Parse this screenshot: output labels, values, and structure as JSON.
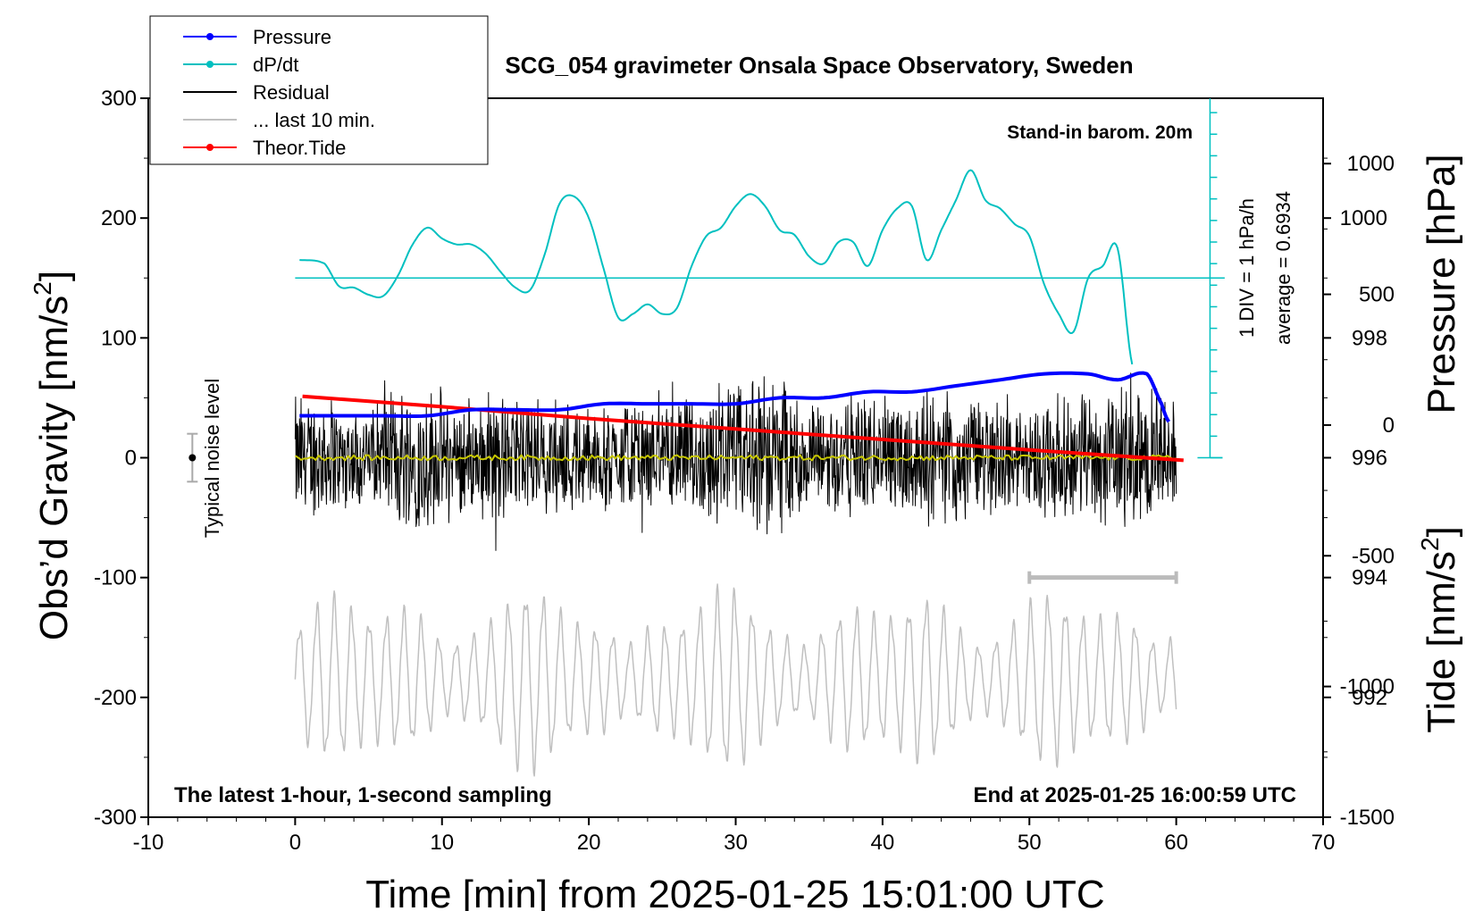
{
  "chart_data": {
    "type": "line",
    "title": "SCG_054 gravimeter Onsala Space Observatory, Sweden",
    "note_top_right": "Stand-in barom. 20m",
    "note_bottom_left": "The latest 1-hour, 1-second sampling",
    "note_bottom_right": "End at 2025-01-25 16:00:59 UTC",
    "xlabel": "Time [min] from 2025-01-25 15:01:00 UTC",
    "ylabel_left": "Obs'd Gravity [nm/s²]",
    "ylabel_left_main": "Obs’d Gravity [nm/s",
    "ylabel_left_sup": "2",
    "ylabel_left_end": "]",
    "ylabel_pressure": "Pressure [hPa]",
    "ylabel_tide": "Tide [nm/s²]",
    "ylabel_tide_main": "Tide [nm/s",
    "ylabel_tide_sup": "2",
    "ylabel_tide_end": "]",
    "xlim": [
      -10,
      70
    ],
    "ylim_left": [
      -300,
      300
    ],
    "x_ticks": [
      "-10",
      "0",
      "10",
      "20",
      "30",
      "40",
      "50",
      "60",
      "70"
    ],
    "x_tick_values": [
      -10,
      0,
      10,
      20,
      30,
      40,
      50,
      60,
      70
    ],
    "y_ticks_left": [
      "-300",
      "-200",
      "-100",
      "0",
      "100",
      "200",
      "300"
    ],
    "y_tick_values_left": [
      -300,
      -200,
      -100,
      0,
      100,
      200,
      300
    ],
    "pressure_axis": {
      "ticks": [
        "992",
        "994",
        "996",
        "998",
        "1000"
      ],
      "tick_values": [
        992,
        994,
        996,
        998,
        1000
      ],
      "range": [
        990.0,
        1002.0
      ]
    },
    "tide_axis": {
      "ticks": [
        "-1500",
        "-1000",
        "-500",
        "0",
        "500",
        "1000"
      ],
      "tick_values": [
        -1500,
        -1000,
        -500,
        0,
        500,
        1000
      ],
      "range": [
        -1500,
        1250
      ]
    },
    "dpdt_scale": {
      "label_div": "1 DIV = 1 hPa/h",
      "label_avg": "average = 0.6934",
      "baseline_gravity": 150,
      "div_gravity_units": 18
    },
    "noise_level": {
      "label": "Typical noise level",
      "x": -7,
      "center": 0,
      "half_range": 20
    },
    "last10_bar": {
      "x_start": 50,
      "x_end": 60,
      "gravity": -100
    },
    "legend": [
      {
        "label": "Pressure",
        "color": "#0000ff",
        "marker": true
      },
      {
        "label": "dP/dt",
        "color": "#00c0c0",
        "marker": true
      },
      {
        "label": "Residual",
        "color": "#000000",
        "marker": false
      },
      {
        "label": "... last 10 min.",
        "color": "#c0c0c0",
        "marker": false
      },
      {
        "label": "Theor.Tide",
        "color": "#ff0000",
        "marker": true
      }
    ],
    "series": [
      {
        "name": "Pressure",
        "axis": "pressure",
        "color": "#0000ff",
        "x": [
          0.3,
          3,
          6,
          9,
          12,
          15,
          18,
          21,
          24,
          27,
          30,
          33,
          36,
          39,
          42,
          45,
          48,
          51,
          54,
          56,
          58,
          59,
          59.5
        ],
        "values": [
          996.7,
          996.7,
          996.7,
          996.7,
          996.8,
          996.8,
          996.8,
          996.9,
          996.9,
          996.9,
          996.9,
          997.0,
          997.0,
          997.1,
          997.1,
          997.2,
          997.3,
          997.4,
          997.4,
          997.3,
          997.4,
          996.9,
          996.6
        ]
      },
      {
        "name": "dP/dt",
        "axis": "gravity",
        "color": "#00c0c0",
        "x": [
          0.3,
          2,
          3,
          4,
          5,
          6,
          7,
          8,
          9,
          10,
          11,
          12,
          13,
          14,
          15,
          16,
          17,
          18,
          19,
          20,
          21,
          22,
          23,
          24,
          25,
          26,
          27,
          28,
          29,
          30,
          31,
          32,
          33,
          34,
          35,
          36,
          37,
          38,
          39,
          40,
          41,
          42,
          43,
          44,
          45,
          46,
          47,
          48,
          49,
          50,
          51,
          52,
          53,
          54,
          55,
          56,
          57
        ],
        "values": [
          165,
          162,
          143,
          142,
          136,
          135,
          152,
          178,
          192,
          183,
          178,
          178,
          170,
          155,
          142,
          140,
          170,
          212,
          218,
          200,
          158,
          117,
          120,
          128,
          120,
          125,
          160,
          185,
          192,
          210,
          220,
          210,
          190,
          186,
          168,
          162,
          180,
          180,
          160,
          190,
          208,
          210,
          165,
          190,
          215,
          240,
          215,
          208,
          195,
          185,
          145,
          120,
          105,
          150,
          160,
          175,
          78
        ]
      },
      {
        "name": "Residual",
        "axis": "gravity",
        "color": "#000000",
        "x_range": [
          0,
          60
        ],
        "amplitude_range": [
          -95,
          104
        ],
        "envelope_x": [
          0,
          5,
          8,
          10,
          13,
          16,
          20,
          25,
          29,
          32,
          35,
          40,
          45,
          50,
          55,
          57,
          60
        ],
        "envelope_y": [
          60,
          45,
          70,
          60,
          55,
          55,
          50,
          45,
          60,
          80,
          55,
          55,
          65,
          50,
          60,
          65,
          55
        ]
      },
      {
        "name": "Smoothed residual",
        "axis": "gravity",
        "color": "#c8c800",
        "x_range": [
          0,
          60
        ],
        "level": 0
      },
      {
        "name": "... last 10 min.",
        "axis": "gravity",
        "color": "#c0c0c0",
        "x_range": [
          0,
          60
        ],
        "center": -185,
        "amplitude_range": [
          -273,
          -105
        ]
      },
      {
        "name": "Theor.Tide",
        "axis": "tide",
        "color": "#ff0000",
        "x": [
          0.5,
          10,
          20,
          30,
          40,
          50,
          60.5
        ],
        "values": [
          110,
          70,
          25,
          -15,
          -55,
          -95,
          -135
        ]
      }
    ]
  }
}
